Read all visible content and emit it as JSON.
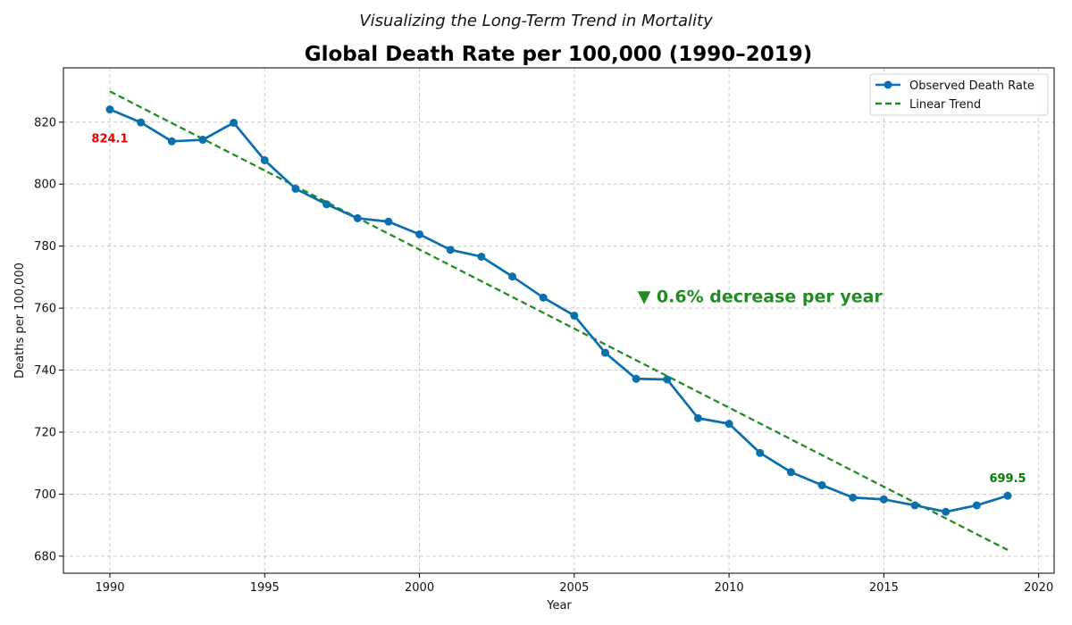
{
  "chart_data": {
    "type": "line",
    "suptitle": "Visualizing the Long-Term Trend in Mortality",
    "title": "Global Death Rate per 100,000 (1990–2019)",
    "xlabel": "Year",
    "ylabel": "Deaths per 100,000",
    "xlim": [
      1988.5,
      2020.5
    ],
    "ylim": [
      674.5,
      837.5
    ],
    "xticks": [
      1990,
      1995,
      2000,
      2005,
      2010,
      2015,
      2020
    ],
    "yticks": [
      680,
      700,
      720,
      740,
      760,
      780,
      800,
      820
    ],
    "grid": true,
    "legend_position": "top-right",
    "x": [
      1990,
      1991,
      1992,
      1993,
      1994,
      1995,
      1996,
      1997,
      1998,
      1999,
      2000,
      2001,
      2002,
      2003,
      2004,
      2005,
      2006,
      2007,
      2008,
      2009,
      2010,
      2011,
      2012,
      2013,
      2014,
      2015,
      2016,
      2017,
      2018,
      2019
    ],
    "series": [
      {
        "name": "Observed Death Rate",
        "color": "#0a6fad",
        "style": "solid-with-markers",
        "values": [
          824.1,
          819.9,
          813.8,
          814.3,
          819.8,
          807.7,
          798.5,
          793.5,
          789.0,
          787.9,
          783.8,
          778.8,
          776.6,
          770.2,
          763.4,
          757.6,
          745.6,
          737.2,
          737.0,
          724.5,
          722.7,
          713.3,
          707.1,
          702.9,
          698.9,
          698.3,
          696.4,
          694.3,
          696.4,
          699.5
        ]
      },
      {
        "name": "Linear Trend",
        "color": "#228b22",
        "style": "dashed",
        "x": [
          1990,
          2019
        ],
        "values": [
          829.9,
          682.0
        ]
      }
    ],
    "annotations": [
      {
        "text": "824.1",
        "x": 1990,
        "y": 814.9,
        "color": "#e00000"
      },
      {
        "text": "699.5",
        "x": 2019,
        "y": 705.3,
        "color": "#008000"
      },
      {
        "text": "▼ 0.6% decrease per year",
        "x": 2011.0,
        "y": 763.9,
        "color": "#228b22"
      }
    ]
  }
}
